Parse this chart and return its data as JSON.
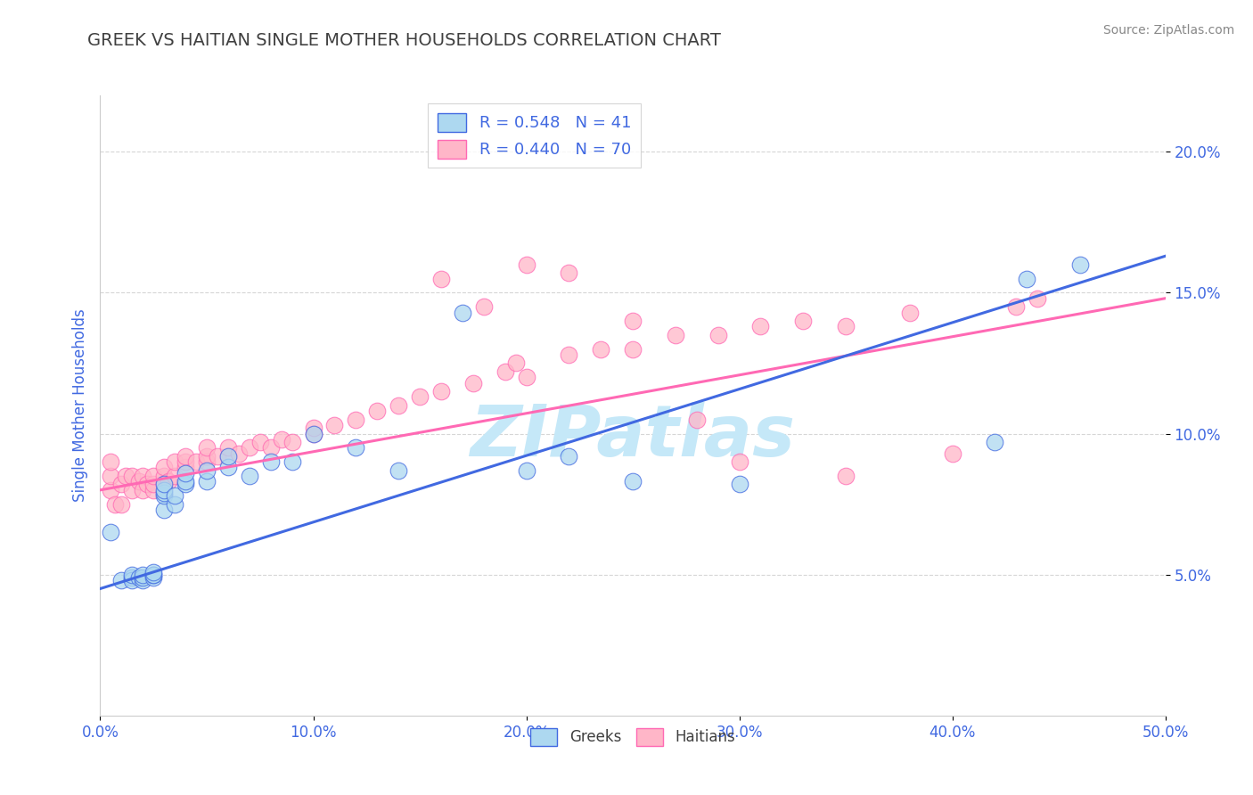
{
  "title": "GREEK VS HAITIAN SINGLE MOTHER HOUSEHOLDS CORRELATION CHART",
  "source_text": "Source: ZipAtlas.com",
  "ylabel": "Single Mother Households",
  "xlim": [
    0.0,
    0.5
  ],
  "ylim": [
    0.0,
    0.22
  ],
  "xtick_labels": [
    "0.0%",
    "",
    "",
    "",
    "",
    "",
    "",
    "",
    "",
    "",
    "10.0%",
    "",
    "",
    "",
    "",
    "",
    "",
    "",
    "",
    "",
    "20.0%",
    "",
    "",
    "",
    "",
    "",
    "",
    "",
    "",
    "",
    "30.0%",
    "",
    "",
    "",
    "",
    "",
    "",
    "",
    "",
    "",
    "40.0%",
    "",
    "",
    "",
    "",
    "",
    "",
    "",
    "",
    "",
    "50.0%"
  ],
  "xtick_vals": [
    0.0,
    0.01,
    0.02,
    0.03,
    0.04,
    0.05,
    0.06,
    0.07,
    0.08,
    0.09,
    0.1,
    0.11,
    0.12,
    0.13,
    0.14,
    0.15,
    0.16,
    0.17,
    0.18,
    0.19,
    0.2,
    0.21,
    0.22,
    0.23,
    0.24,
    0.25,
    0.26,
    0.27,
    0.28,
    0.29,
    0.3,
    0.31,
    0.32,
    0.33,
    0.34,
    0.35,
    0.36,
    0.37,
    0.38,
    0.39,
    0.4,
    0.41,
    0.42,
    0.43,
    0.44,
    0.45,
    0.46,
    0.47,
    0.48,
    0.49,
    0.5
  ],
  "ytick_labels": [
    "5.0%",
    "10.0%",
    "15.0%",
    "20.0%"
  ],
  "ytick_vals": [
    0.05,
    0.1,
    0.15,
    0.2
  ],
  "greek_R": 0.548,
  "greek_N": 41,
  "haitian_R": 0.44,
  "haitian_N": 70,
  "greek_color": "#ADD8F0",
  "haitian_color": "#FFB6C8",
  "greek_line_color": "#4169E1",
  "haitian_line_color": "#FF69B4",
  "watermark": "ZIPatlas",
  "watermark_color": "#C5E8F8",
  "background_color": "#FFFFFF",
  "title_color": "#404040",
  "axis_label_color": "#4169E1",
  "tick_label_color": "#4169E1",
  "source_color": "#888888",
  "greek_x": [
    0.005,
    0.01,
    0.015,
    0.015,
    0.015,
    0.018,
    0.02,
    0.02,
    0.02,
    0.025,
    0.025,
    0.025,
    0.025,
    0.03,
    0.03,
    0.03,
    0.03,
    0.03,
    0.035,
    0.035,
    0.04,
    0.04,
    0.04,
    0.05,
    0.05,
    0.06,
    0.06,
    0.07,
    0.08,
    0.09,
    0.1,
    0.12,
    0.14,
    0.17,
    0.2,
    0.22,
    0.25,
    0.3,
    0.42,
    0.435,
    0.46
  ],
  "greek_y": [
    0.065,
    0.048,
    0.049,
    0.048,
    0.05,
    0.049,
    0.048,
    0.049,
    0.05,
    0.049,
    0.05,
    0.05,
    0.051,
    0.073,
    0.078,
    0.079,
    0.08,
    0.082,
    0.075,
    0.078,
    0.082,
    0.083,
    0.086,
    0.083,
    0.087,
    0.088,
    0.092,
    0.085,
    0.09,
    0.09,
    0.1,
    0.095,
    0.087,
    0.143,
    0.087,
    0.092,
    0.083,
    0.082,
    0.097,
    0.155,
    0.16
  ],
  "haitian_x": [
    0.005,
    0.005,
    0.005,
    0.007,
    0.01,
    0.01,
    0.012,
    0.015,
    0.015,
    0.018,
    0.02,
    0.02,
    0.022,
    0.025,
    0.025,
    0.025,
    0.03,
    0.03,
    0.03,
    0.032,
    0.035,
    0.035,
    0.04,
    0.04,
    0.04,
    0.045,
    0.05,
    0.05,
    0.05,
    0.055,
    0.06,
    0.06,
    0.065,
    0.07,
    0.075,
    0.08,
    0.085,
    0.09,
    0.1,
    0.1,
    0.11,
    0.12,
    0.13,
    0.14,
    0.15,
    0.16,
    0.175,
    0.19,
    0.195,
    0.2,
    0.22,
    0.235,
    0.25,
    0.27,
    0.29,
    0.31,
    0.33,
    0.35,
    0.38,
    0.43,
    0.16,
    0.18,
    0.2,
    0.22,
    0.25,
    0.28,
    0.3,
    0.35,
    0.4,
    0.44
  ],
  "haitian_y": [
    0.08,
    0.085,
    0.09,
    0.075,
    0.075,
    0.082,
    0.085,
    0.08,
    0.085,
    0.083,
    0.08,
    0.085,
    0.082,
    0.08,
    0.082,
    0.085,
    0.085,
    0.082,
    0.088,
    0.083,
    0.085,
    0.09,
    0.088,
    0.09,
    0.092,
    0.09,
    0.09,
    0.092,
    0.095,
    0.092,
    0.092,
    0.095,
    0.093,
    0.095,
    0.097,
    0.095,
    0.098,
    0.097,
    0.1,
    0.102,
    0.103,
    0.105,
    0.108,
    0.11,
    0.113,
    0.115,
    0.118,
    0.122,
    0.125,
    0.12,
    0.128,
    0.13,
    0.13,
    0.135,
    0.135,
    0.138,
    0.14,
    0.138,
    0.143,
    0.145,
    0.155,
    0.145,
    0.16,
    0.157,
    0.14,
    0.105,
    0.09,
    0.085,
    0.093,
    0.148
  ],
  "blue_line_x0": 0.0,
  "blue_line_y0": 0.045,
  "blue_line_x1": 0.5,
  "blue_line_y1": 0.163,
  "pink_line_x0": 0.0,
  "pink_line_y0": 0.08,
  "pink_line_x1": 0.5,
  "pink_line_y1": 0.148
}
